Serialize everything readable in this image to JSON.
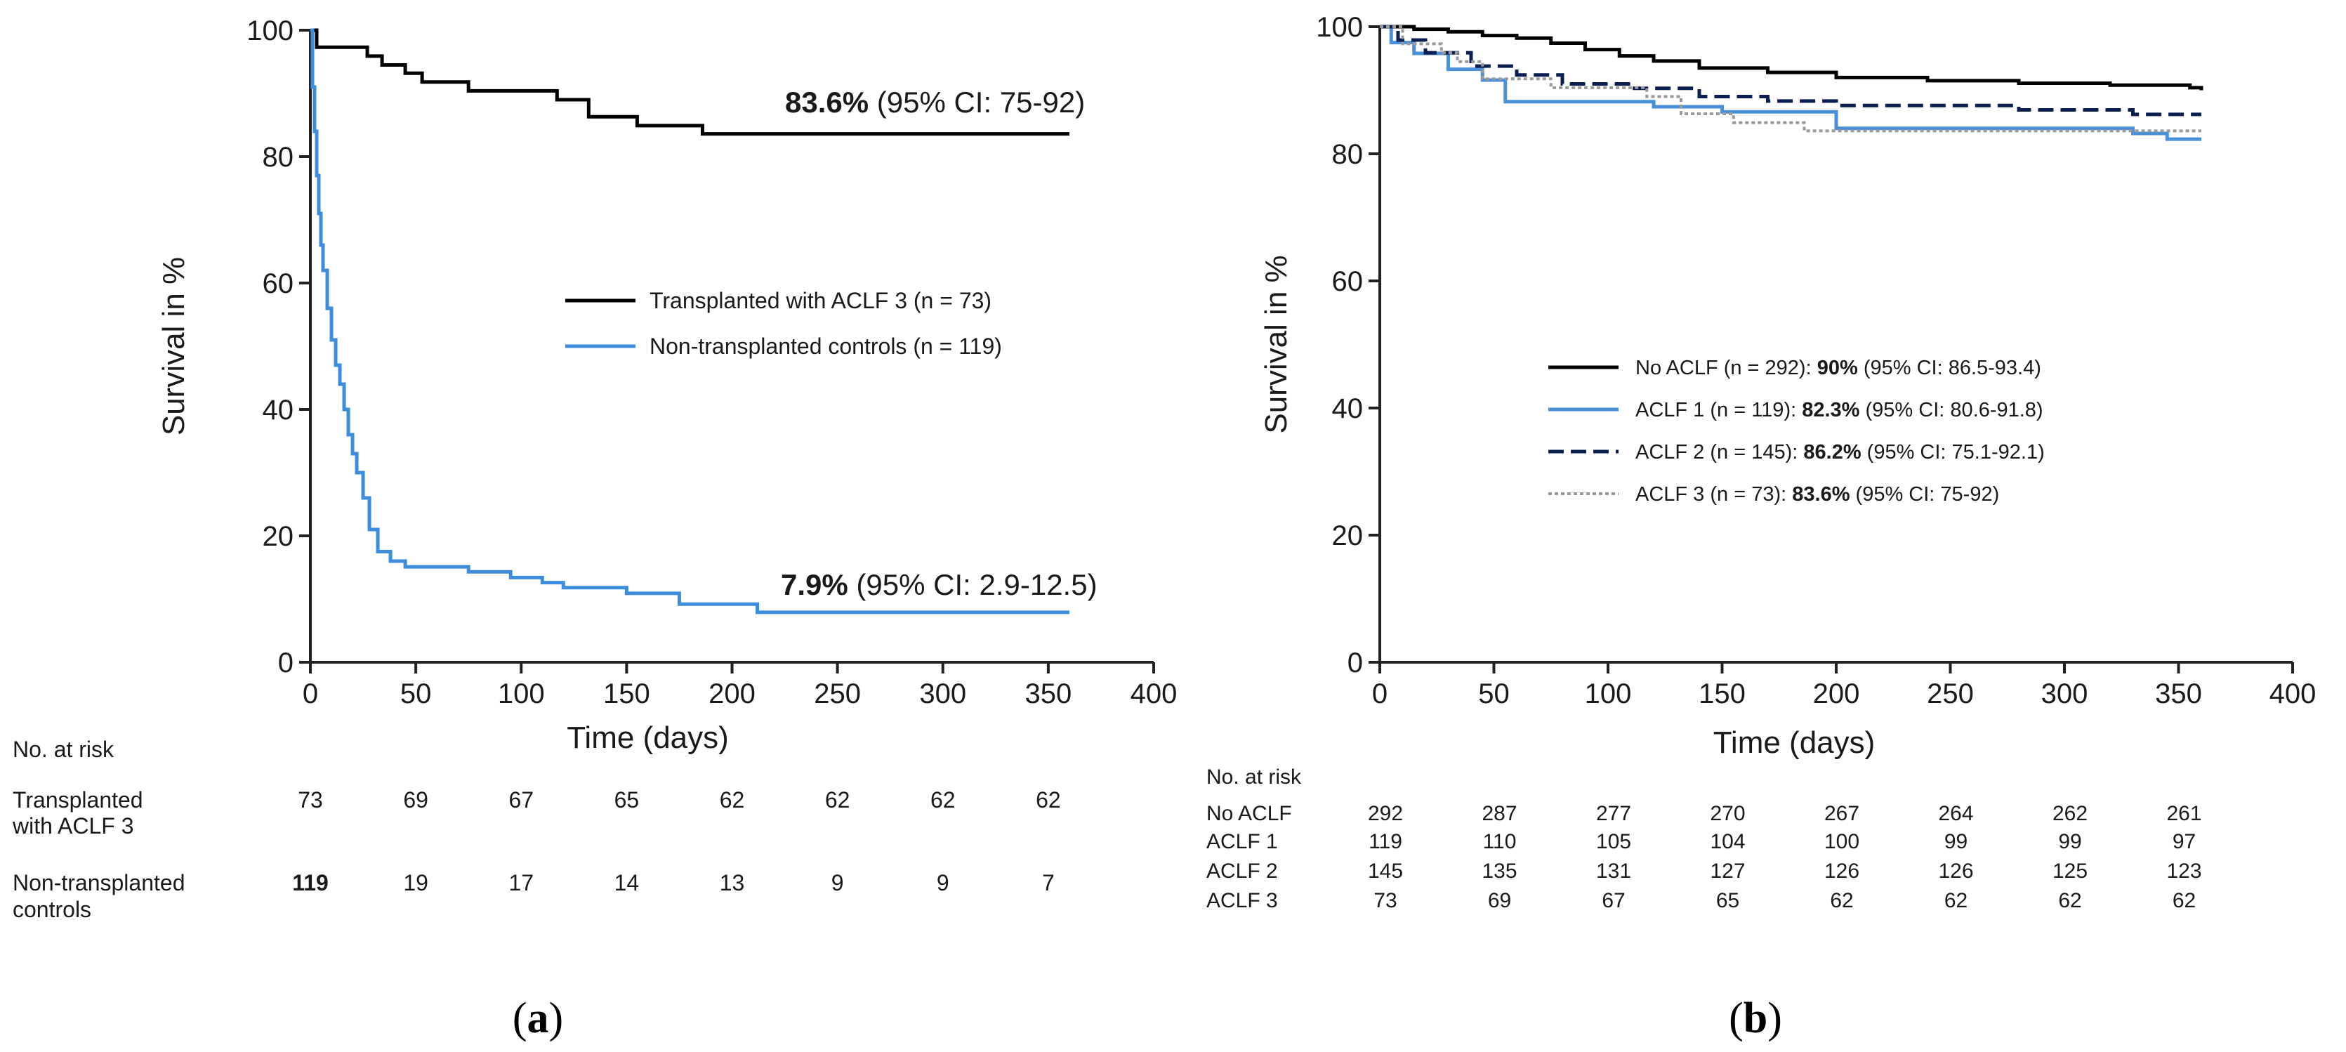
{
  "chart_data": [
    {
      "panel": "a",
      "type": "line",
      "caption": "(a)",
      "xlabel": "Time (days)",
      "ylabel": "Survival in %",
      "xlim": [
        0,
        400
      ],
      "ylim": [
        0,
        100
      ],
      "xticks": [
        0,
        50,
        100,
        150,
        200,
        250,
        300,
        350,
        400
      ],
      "yticks": [
        0,
        20,
        40,
        60,
        80,
        100
      ],
      "series": [
        {
          "name": "Transplanted with ACLF 3 (n = 73)",
          "color": "#000000",
          "dash": "solid",
          "x": [
            0,
            3,
            27,
            34,
            45,
            53,
            75,
            117,
            132,
            155,
            186,
            360
          ],
          "y": [
            100,
            97.3,
            95.9,
            94.5,
            93.2,
            91.8,
            90.4,
            89.0,
            86.3,
            84.9,
            83.6,
            83.6
          ],
          "end_label_bold": "83.6%",
          "end_label_rest": " (95% CI: 75-92)"
        },
        {
          "name": "Non-transplanted controls (n = 119)",
          "color": "#3e8ddd",
          "dash": "solid",
          "x": [
            0,
            1,
            2,
            3,
            4,
            5,
            6,
            8,
            10,
            12,
            14,
            16,
            18,
            20,
            22,
            25,
            28,
            32,
            38,
            45,
            60,
            75,
            95,
            110,
            120,
            150,
            175,
            212,
            360
          ],
          "y": [
            100,
            91,
            84,
            77,
            71,
            66,
            62,
            56,
            51,
            47,
            44,
            40,
            36,
            33,
            30,
            26,
            21,
            17.5,
            16,
            15.1,
            15.1,
            14.3,
            13.4,
            12.6,
            11.8,
            10.9,
            9.2,
            7.9,
            7.9
          ],
          "end_label_bold": "7.9%",
          "end_label_rest": " (95% CI: 2.9-12.5)"
        }
      ],
      "risk_table": {
        "title": "No. at risk",
        "times": [
          0,
          50,
          100,
          150,
          200,
          250,
          300,
          350
        ],
        "rows": [
          {
            "label_line1": "Transplanted",
            "label_line2": "with ACLF 3",
            "values": [
              "73",
              "69",
              "67",
              "65",
              "62",
              "62",
              "62",
              "62"
            ],
            "bold_first": false
          },
          {
            "label_line1": "Non-transplanted",
            "label_line2": "controls",
            "values": [
              "119",
              "19",
              "17",
              "14",
              "13",
              "9",
              "9",
              "7"
            ],
            "bold_first": true
          }
        ]
      }
    },
    {
      "panel": "b",
      "type": "line",
      "caption": "(b)",
      "xlabel": "Time (days)",
      "ylabel": "Survival in %",
      "xlim": [
        0,
        400
      ],
      "ylim": [
        0,
        100
      ],
      "xticks": [
        0,
        50,
        100,
        150,
        200,
        250,
        300,
        350,
        400
      ],
      "yticks": [
        0,
        20,
        40,
        60,
        80,
        100
      ],
      "series": [
        {
          "name": "No ACLF",
          "legend_n": "No ACLF (n = 292):",
          "legend_pct": "90%",
          "legend_ci": "(95% CI: 86.5-93.4)",
          "color": "#000000",
          "dash": "solid",
          "x": [
            0,
            15,
            30,
            45,
            60,
            75,
            90,
            105,
            120,
            140,
            170,
            200,
            240,
            280,
            320,
            355,
            360
          ],
          "y": [
            100,
            99.6,
            99.2,
            98.6,
            98.2,
            97.4,
            96.4,
            95.4,
            94.6,
            93.5,
            92.8,
            92.0,
            91.5,
            91.1,
            90.8,
            90.4,
            90.0
          ]
        },
        {
          "name": "ACLF 1",
          "legend_n": "ACLF 1 (n = 119):",
          "legend_pct": "82.3%",
          "legend_ci": "(95% CI: 80.6-91.8)",
          "color": "#4a90d9",
          "dash": "solid",
          "x": [
            0,
            5,
            15,
            30,
            45,
            55,
            70,
            100,
            120,
            150,
            200,
            260,
            330,
            345,
            360
          ],
          "y": [
            100,
            97.5,
            95.8,
            93.3,
            91.6,
            88.2,
            88.2,
            88.2,
            87.4,
            86.6,
            84.0,
            84.0,
            83.2,
            82.3,
            82.3
          ]
        },
        {
          "name": "ACLF 2",
          "legend_n": "ACLF 2 (n = 145):",
          "legend_pct": "86.2%",
          "legend_ci": "(95% CI: 75.1-92.1)",
          "color": "#0a1f4f",
          "dash": "dashed",
          "x": [
            0,
            8,
            20,
            40,
            60,
            80,
            110,
            140,
            170,
            200,
            240,
            280,
            330,
            360
          ],
          "y": [
            100,
            97.9,
            95.9,
            93.8,
            92.4,
            91.0,
            90.3,
            89.0,
            88.3,
            87.6,
            87.6,
            86.9,
            86.2,
            86.2
          ]
        },
        {
          "name": "ACLF 3",
          "legend_n": "ACLF 3 (n = 73):",
          "legend_pct": "83.6%",
          "legend_ci": "(95% CI: 75-92)",
          "color": "#9a9a9a",
          "dash": "dotted",
          "x": [
            0,
            10,
            27,
            34,
            45,
            75,
            117,
            132,
            155,
            186,
            360
          ],
          "y": [
            100,
            97.3,
            95.9,
            94.5,
            91.8,
            90.4,
            89.0,
            86.3,
            84.9,
            83.6,
            83.6
          ]
        }
      ],
      "risk_table": {
        "title": "No. at risk",
        "times": [
          0,
          50,
          100,
          150,
          200,
          250,
          300,
          350
        ],
        "rows": [
          {
            "label": "No ACLF",
            "values": [
              "292",
              "287",
              "277",
              "270",
              "267",
              "264",
              "262",
              "261"
            ]
          },
          {
            "label": "ACLF 1",
            "values": [
              "119",
              "110",
              "105",
              "104",
              "100",
              "99",
              "99",
              "97"
            ]
          },
          {
            "label": "ACLF 2",
            "values": [
              "145",
              "135",
              "131",
              "127",
              "126",
              "126",
              "125",
              "123"
            ]
          },
          {
            "label": "ACLF 3",
            "values": [
              "73",
              "69",
              "67",
              "65",
              "62",
              "62",
              "62",
              "62"
            ]
          }
        ]
      }
    }
  ]
}
